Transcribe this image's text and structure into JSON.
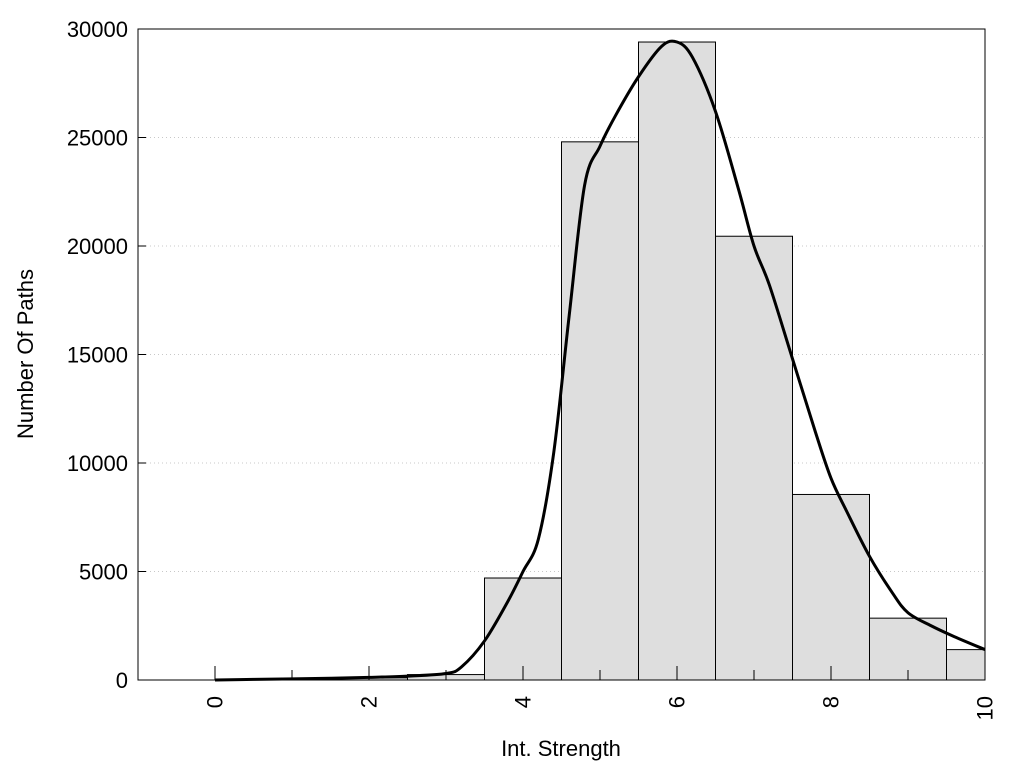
{
  "chart_data": {
    "type": "bar",
    "xlabel": "Int. Strength",
    "ylabel": "Number Of Paths",
    "xlim": [
      -1,
      10
    ],
    "ylim": [
      0,
      30000
    ],
    "x_ticks": [
      0,
      2,
      4,
      6,
      8,
      10
    ],
    "y_ticks": [
      0,
      5000,
      10000,
      15000,
      20000,
      25000,
      30000
    ],
    "grid": "horizontal dotted",
    "legend": "none",
    "bins": [
      {
        "x": 0,
        "value": 0
      },
      {
        "x": 1,
        "value": 60
      },
      {
        "x": 2,
        "value": 100
      },
      {
        "x": 3,
        "value": 250
      },
      {
        "x": 4,
        "value": 4700
      },
      {
        "x": 5,
        "value": 24800
      },
      {
        "x": 6,
        "value": 29400
      },
      {
        "x": 7,
        "value": 20450
      },
      {
        "x": 8,
        "value": 8550
      },
      {
        "x": 9,
        "value": 2850
      },
      {
        "x": 10,
        "value": 1400
      }
    ],
    "bin_width": 1,
    "curve": {
      "x": [
        0,
        0.5,
        1,
        1.5,
        2,
        2.5,
        3,
        3.2,
        3.5,
        3.8,
        4,
        4.2,
        4.4,
        4.6,
        4.8,
        5,
        5.2,
        5.5,
        5.8,
        6,
        6.2,
        6.5,
        6.8,
        7,
        7.2,
        7.5,
        7.8,
        8,
        8.2,
        8.5,
        8.8,
        9,
        9.3,
        9.6,
        10
      ],
      "y": [
        0,
        30,
        50,
        80,
        120,
        180,
        300,
        600,
        1800,
        3600,
        5000,
        6500,
        10500,
        16800,
        22800,
        24600,
        26000,
        27800,
        29200,
        29400,
        28700,
        26200,
        22600,
        20000,
        18200,
        14800,
        11400,
        9300,
        7800,
        5700,
        4000,
        3100,
        2500,
        2000,
        1400
      ]
    },
    "colors": {
      "bar_fill": "#dedede",
      "bar_stroke": "#000000",
      "curve": "#000000",
      "grid": "#c8c8c8"
    }
  }
}
